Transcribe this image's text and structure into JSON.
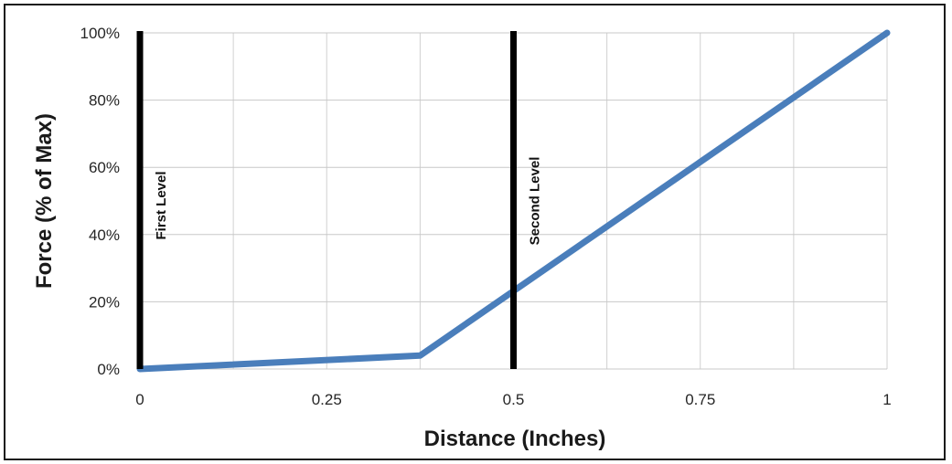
{
  "chart_data": {
    "type": "line",
    "title": "",
    "xlabel": "Distance (Inches)",
    "ylabel": "Force (% of Max)",
    "xlim": [
      0,
      1
    ],
    "ylim": [
      0,
      100
    ],
    "x_ticks": [
      "0",
      "0.25",
      "0.5",
      "0.75",
      "1"
    ],
    "y_ticks": [
      "0%",
      "20%",
      "40%",
      "60%",
      "80%",
      "100%"
    ],
    "grid": true,
    "series": [
      {
        "color": "#4a7ebb",
        "points": [
          {
            "x": 0,
            "y": 0
          },
          {
            "x": 0.375,
            "y": 4
          },
          {
            "x": 1,
            "y": 100
          }
        ]
      }
    ],
    "annotations": [
      {
        "label": "First Level",
        "x": 0,
        "color": "#000000"
      },
      {
        "label": "Second Level",
        "x": 0.5,
        "color": "#000000"
      }
    ]
  }
}
